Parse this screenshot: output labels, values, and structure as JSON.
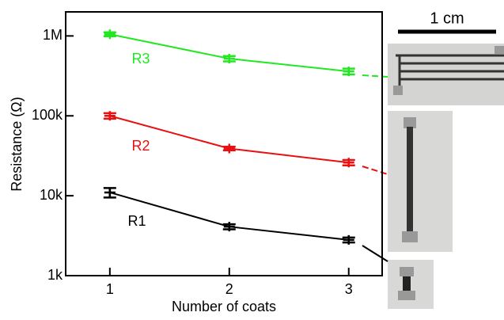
{
  "chart_data": {
    "type": "line",
    "x_label": "Number of coats",
    "y_label": "Resistance (Ω)",
    "x": [
      1,
      2,
      3
    ],
    "xlim": [
      0.63,
      3.28
    ],
    "xticks": [
      1,
      2,
      3
    ],
    "ylim": [
      1000,
      2000000
    ],
    "log_y": true,
    "yticks": [
      {
        "value": 1000,
        "label": "1k"
      },
      {
        "value": 10000,
        "label": "10k"
      },
      {
        "value": 100000,
        "label": "100k"
      },
      {
        "value": 1000000,
        "label": "1M"
      }
    ],
    "series": [
      {
        "name": "R1",
        "color": "#000000",
        "values": [
          11000,
          4100,
          2800
        ],
        "errors": [
          1500,
          300,
          200
        ]
      },
      {
        "name": "R2",
        "color": "#e81010",
        "values": [
          100000,
          39000,
          26000
        ],
        "errors": [
          8000,
          2000,
          2000
        ]
      },
      {
        "name": "R3",
        "color": "#22e822",
        "values": [
          1050000,
          520000,
          360000
        ],
        "errors": [
          60000,
          40000,
          30000
        ]
      }
    ],
    "scale_bar_label": "1 cm"
  }
}
